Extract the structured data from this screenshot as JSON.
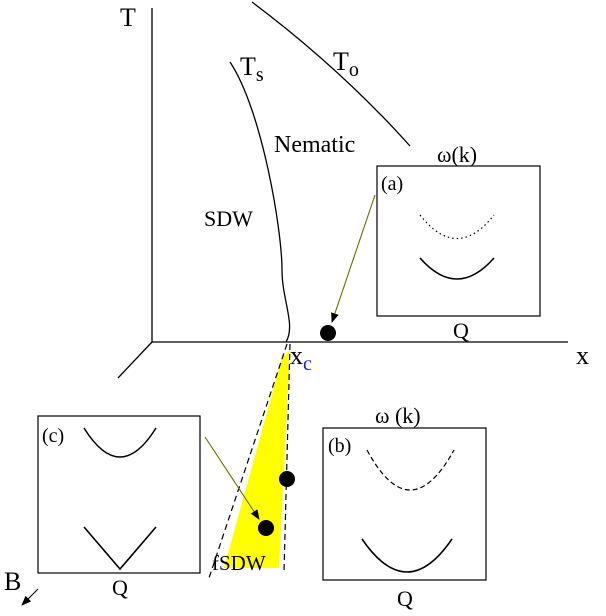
{
  "axes": {
    "t_label": "T",
    "x_label": "x",
    "b_label": "B"
  },
  "curves": {
    "t_s": {
      "main": "T",
      "sub": "s"
    },
    "t_o": {
      "main": "T",
      "sub": "o"
    }
  },
  "regions": {
    "nematic": "Nematic",
    "sdw": "SDW",
    "fsdw": "fSDW"
  },
  "critical_point": {
    "main": "x",
    "sub": "c",
    "sub_color": "#1a1acc"
  },
  "insets": {
    "a": {
      "tag": "(a)",
      "title": "ω(k)",
      "xlabel": "Q"
    },
    "b": {
      "tag": "(b)",
      "title": "ω (k)",
      "xlabel": "Q"
    },
    "c": {
      "tag": "(c)",
      "xlabel": "Q"
    }
  },
  "colors": {
    "fsdw_fill": "#ffff00",
    "arrow_line": "#6b6b00",
    "line": "#000000"
  }
}
